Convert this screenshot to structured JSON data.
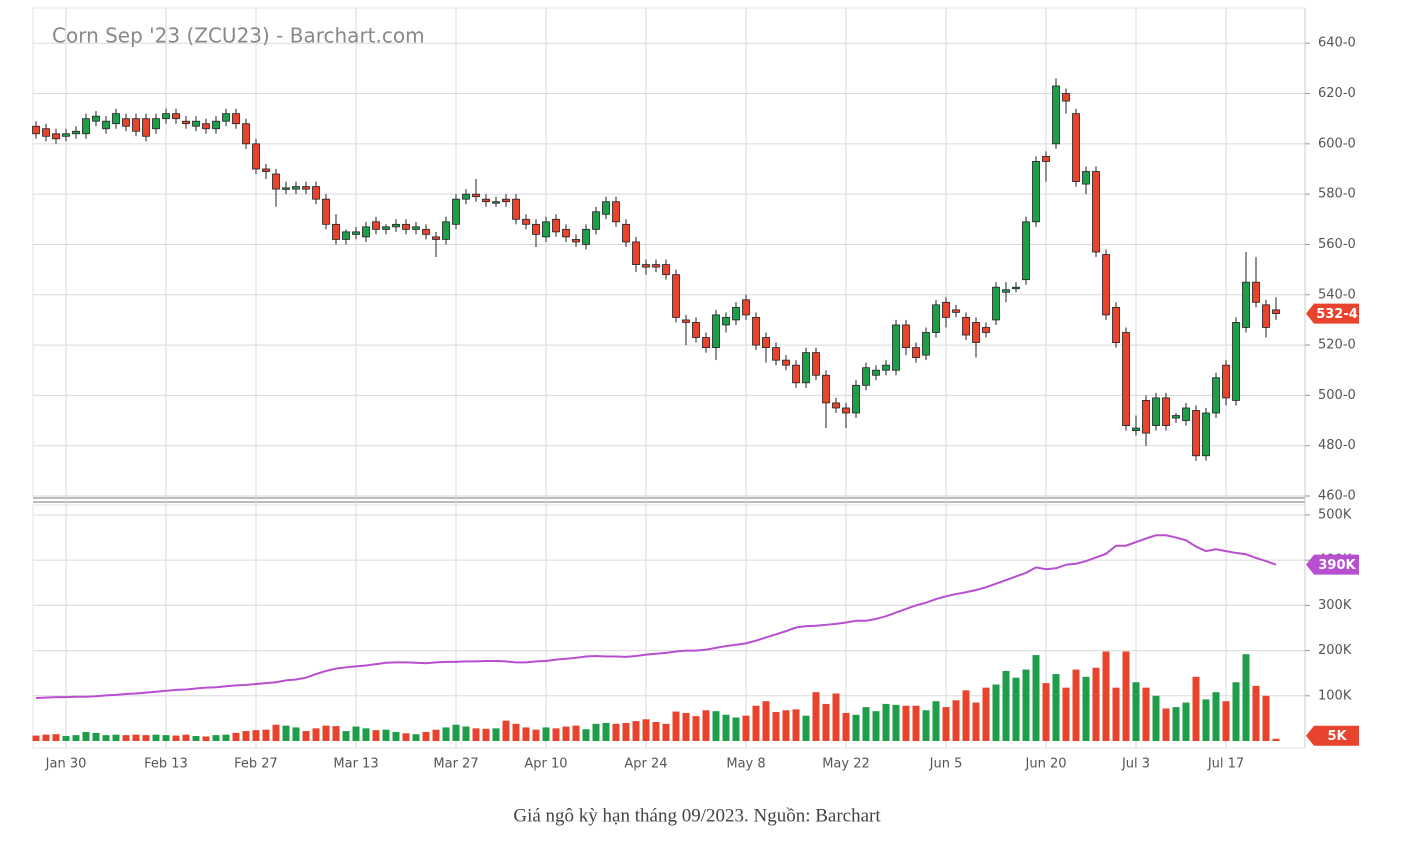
{
  "chart_data": {
    "type": "candlestick",
    "title": "Corn Sep '23 (ZCU23) - Barchart.com",
    "up_color": "#1f9e4a",
    "down_color": "#e8432c",
    "categories": [
      null,
      null,
      null,
      "Jan 30",
      null,
      null,
      null,
      null,
      null,
      null,
      null,
      null,
      null,
      "Feb 13",
      null,
      null,
      null,
      null,
      null,
      null,
      null,
      null,
      "Feb 27",
      null,
      null,
      null,
      null,
      null,
      null,
      null,
      null,
      null,
      "Mar 13",
      null,
      null,
      null,
      null,
      null,
      null,
      null,
      null,
      null,
      "Mar 27",
      null,
      null,
      null,
      null,
      null,
      null,
      null,
      null,
      "Apr 10",
      null,
      null,
      null,
      null,
      null,
      null,
      null,
      null,
      null,
      "Apr 24",
      null,
      null,
      null,
      null,
      null,
      null,
      null,
      null,
      null,
      "May 8",
      null,
      null,
      null,
      null,
      null,
      null,
      null,
      null,
      null,
      "May 22",
      null,
      null,
      null,
      null,
      null,
      null,
      null,
      null,
      null,
      "Jun 5",
      null,
      null,
      null,
      null,
      null,
      null,
      null,
      null,
      null,
      "Jun 20",
      null,
      null,
      null,
      null,
      null,
      null,
      null,
      null,
      "Jul 3",
      null,
      null,
      null,
      null,
      null,
      null,
      null,
      null,
      "Jul 17",
      null,
      null,
      null,
      null,
      null
    ],
    "open": [
      607,
      606,
      604,
      603,
      604,
      604,
      609,
      606,
      608,
      610,
      610,
      610,
      606,
      610,
      612,
      609,
      607,
      608,
      606,
      609,
      612,
      608,
      600,
      590,
      588,
      582,
      582,
      583,
      583,
      578,
      568,
      562,
      564,
      563,
      569,
      566,
      567,
      568,
      566,
      566,
      563,
      562,
      568,
      578,
      580,
      578,
      577,
      578,
      578,
      570,
      568,
      563,
      570,
      566,
      562,
      560,
      566,
      572,
      577,
      568,
      561,
      552,
      552,
      552,
      548,
      530,
      529,
      523,
      519,
      528,
      530,
      538,
      531,
      523,
      519,
      514,
      512,
      505,
      517,
      508,
      497,
      495,
      493,
      504,
      508,
      510,
      510,
      528,
      519,
      516,
      525,
      537,
      534,
      531,
      529,
      527,
      530,
      541,
      543,
      546,
      569,
      595,
      600,
      620,
      612,
      584,
      589,
      556,
      535,
      525,
      486,
      498,
      488,
      499,
      491,
      490,
      494,
      476,
      493,
      512,
      498,
      527,
      545,
      536,
      534
    ],
    "high": [
      609,
      608,
      606,
      606,
      607,
      612,
      613,
      611,
      614,
      612,
      612,
      612,
      612,
      614,
      614,
      611,
      611,
      610,
      611,
      614,
      614,
      610,
      602,
      592,
      590,
      585,
      585,
      585,
      585,
      580,
      572,
      566,
      567,
      569,
      571,
      568,
      570,
      570,
      569,
      568,
      565,
      571,
      580,
      582,
      586,
      580,
      579,
      580,
      580,
      572,
      570,
      571,
      572,
      568,
      564,
      568,
      575,
      579,
      579,
      570,
      563,
      554,
      554,
      554,
      550,
      532,
      531,
      525,
      534,
      533,
      537,
      540,
      533,
      525,
      521,
      516,
      514,
      519,
      519,
      510,
      499,
      497,
      506,
      513,
      512,
      514,
      530,
      530,
      521,
      527,
      538,
      539,
      536,
      533,
      531,
      529,
      545,
      545,
      545,
      571,
      595,
      597,
      626,
      622,
      614,
      591,
      591,
      558,
      537,
      527,
      492,
      500,
      501,
      501,
      493,
      497,
      496,
      495,
      509,
      514,
      531,
      557,
      555,
      538,
      539
    ],
    "low": [
      602,
      601,
      600,
      601,
      602,
      602,
      607,
      604,
      606,
      605,
      603,
      601,
      604,
      608,
      608,
      606,
      605,
      604,
      604,
      607,
      606,
      598,
      588,
      586,
      575,
      580,
      580,
      580,
      576,
      566,
      560,
      560,
      562,
      561,
      564,
      564,
      565,
      564,
      564,
      562,
      555,
      560,
      566,
      576,
      577,
      575,
      575,
      575,
      568,
      566,
      559,
      561,
      563,
      561,
      559,
      558,
      564,
      570,
      567,
      559,
      549,
      548,
      549,
      546,
      529,
      520,
      521,
      517,
      514,
      525,
      528,
      530,
      518,
      513,
      512,
      510,
      503,
      503,
      506,
      487,
      493,
      487,
      491,
      502,
      506,
      508,
      508,
      516,
      513,
      514,
      523,
      527,
      531,
      522,
      515,
      523,
      528,
      537,
      541,
      544,
      567,
      585,
      598,
      612,
      583,
      580,
      555,
      530,
      519,
      486,
      484,
      480,
      486,
      486,
      489,
      488,
      474,
      474,
      491,
      496,
      496,
      525,
      535,
      523,
      530
    ],
    "close": [
      604,
      603,
      602,
      604,
      605,
      610,
      611,
      609,
      612,
      607,
      605,
      603,
      610,
      612,
      610,
      608,
      609,
      606,
      609,
      612,
      608,
      600,
      590,
      589,
      582,
      582.5,
      583,
      582,
      578,
      568,
      562,
      565,
      565,
      567,
      566,
      567,
      568,
      566,
      567,
      564,
      562,
      569,
      578,
      580,
      579,
      577,
      577,
      577,
      570,
      568,
      564,
      569,
      565,
      563,
      561,
      566,
      573,
      577,
      569,
      561,
      552,
      551,
      551,
      548,
      531,
      529,
      523,
      519,
      532,
      531,
      535,
      532,
      520,
      519,
      514,
      512,
      505,
      517,
      508,
      497,
      495,
      493,
      504,
      511,
      510,
      512,
      528,
      519,
      515,
      525,
      536,
      531,
      533,
      524,
      521,
      525,
      543,
      542,
      543,
      569,
      593,
      593,
      623,
      617,
      585,
      589,
      557,
      532,
      521,
      488,
      487,
      485,
      499,
      488,
      492,
      495,
      476,
      493,
      507,
      499,
      529,
      545,
      537,
      527,
      532.5
    ],
    "ylim": [
      460,
      654
    ],
    "yticks": [
      {
        "value": 460,
        "label": "460-0"
      },
      {
        "value": 480,
        "label": "480-0"
      },
      {
        "value": 500,
        "label": "500-0"
      },
      {
        "value": 520,
        "label": "520-0"
      },
      {
        "value": 540,
        "label": "540-0"
      },
      {
        "value": 560,
        "label": "560-0"
      },
      {
        "value": 580,
        "label": "580-0"
      },
      {
        "value": 600,
        "label": "600-0"
      },
      {
        "value": 620,
        "label": "620-0"
      },
      {
        "value": 640,
        "label": "640-0"
      }
    ],
    "last_price": {
      "value": 532.5,
      "label": "532-4"
    },
    "volume": {
      "values": [
        12000,
        14000,
        15000,
        11000,
        13000,
        20000,
        18000,
        13000,
        14000,
        13000,
        14000,
        13000,
        14000,
        13000,
        12000,
        14000,
        11000,
        10000,
        13000,
        14000,
        18000,
        22000,
        24000,
        25000,
        36000,
        34000,
        30000,
        22000,
        28000,
        34000,
        33000,
        22000,
        32000,
        28000,
        24000,
        25000,
        20000,
        17000,
        15000,
        20000,
        25000,
        30000,
        36000,
        32000,
        28000,
        27000,
        28000,
        45000,
        38000,
        30000,
        25000,
        30000,
        28000,
        32000,
        34000,
        26000,
        38000,
        40000,
        38000,
        40000,
        44000,
        48000,
        42000,
        38000,
        65000,
        62000,
        55000,
        68000,
        66000,
        58000,
        52000,
        56000,
        78000,
        88000,
        64000,
        68000,
        70000,
        56000,
        108000,
        82000,
        105000,
        62000,
        58000,
        75000,
        66000,
        82000,
        80000,
        78000,
        78000,
        68000,
        88000,
        75000,
        90000,
        112000,
        85000,
        118000,
        125000,
        155000,
        140000,
        158000,
        190000,
        128000,
        148000,
        118000,
        158000,
        142000,
        162000,
        198000,
        118000,
        198000,
        130000,
        118000,
        100000,
        72000,
        75000,
        85000,
        142000,
        92000,
        108000,
        88000,
        130000,
        192000,
        122000,
        100000,
        5000
      ],
      "ylim": [
        0,
        522000
      ],
      "yticks": [
        {
          "value": 100000,
          "label": "100K"
        },
        {
          "value": 200000,
          "label": "200K"
        },
        {
          "value": 300000,
          "label": "300K"
        },
        {
          "value": 400000,
          "label": "400K"
        },
        {
          "value": 500000,
          "label": "500K"
        }
      ],
      "last": {
        "value": 5000,
        "label": "5K"
      }
    },
    "open_interest": {
      "color": "#b84fd0",
      "values": [
        95000,
        96000,
        97000,
        97000,
        98000,
        98000,
        99000,
        101000,
        102000,
        104000,
        105000,
        107000,
        109000,
        111000,
        113000,
        114000,
        116000,
        118000,
        119000,
        121000,
        123000,
        124000,
        126000,
        128000,
        130000,
        134000,
        136000,
        140000,
        148000,
        155000,
        160000,
        163000,
        165000,
        167000,
        170000,
        173000,
        174000,
        174000,
        173000,
        172000,
        174000,
        175000,
        175000,
        176000,
        176000,
        177000,
        177000,
        176000,
        174000,
        174000,
        176000,
        177000,
        180000,
        182000,
        184000,
        187000,
        188000,
        187000,
        187000,
        186000,
        188000,
        191000,
        193000,
        195000,
        198000,
        200000,
        200000,
        202000,
        206000,
        210000,
        213000,
        216000,
        222000,
        229000,
        236000,
        243000,
        251000,
        254000,
        255000,
        257000,
        259000,
        262000,
        266000,
        266000,
        270000,
        276000,
        284000,
        292000,
        300000,
        306000,
        314000,
        320000,
        325000,
        329000,
        334000,
        340000,
        348000,
        356000,
        364000,
        372000,
        384000,
        380000,
        382000,
        390000,
        392000,
        398000,
        406000,
        414000,
        432000,
        432000,
        440000,
        448000,
        455000,
        455000,
        450000,
        444000,
        430000,
        420000,
        424000,
        420000,
        416000,
        413000,
        405000,
        398000,
        390000
      ],
      "last": {
        "value": 390000,
        "label": "390K"
      }
    },
    "grid": true
  },
  "caption": "Giá ngô kỳ hạn tháng 09/2023. Nguồn: Barchart"
}
